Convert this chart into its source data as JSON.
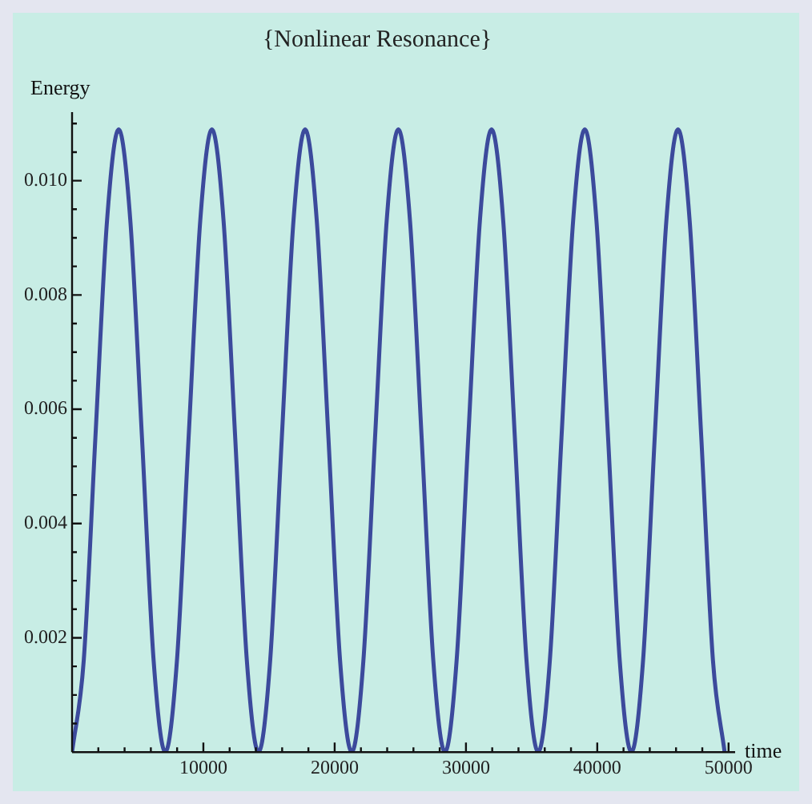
{
  "chart_data": {
    "type": "line",
    "title": "{Nonlinear Resonance}",
    "xlabel": "time",
    "ylabel": "Energy",
    "x": [
      0,
      887.5,
      1775,
      2662.5,
      3550,
      4437.5,
      5325,
      6212.5,
      7100,
      7987.5,
      8875,
      9762.5,
      10650,
      11537.5,
      12425,
      13312.5,
      14200,
      15087.5,
      15975,
      16862.5,
      17750,
      18637.5,
      19525,
      20412.5,
      21300,
      22187.5,
      23075,
      23962.5,
      24850,
      25737.5,
      26625,
      27512.5,
      28400,
      29287.5,
      30175,
      31062.5,
      31950,
      32837.5,
      33725,
      34612.5,
      35500,
      36387.5,
      37275,
      38162.5,
      39050,
      39937.5,
      40825,
      41712.5,
      42600,
      43487.5,
      44375,
      45262.5,
      46150,
      47037.5,
      47925,
      48812.5,
      49700
    ],
    "series": [
      {
        "color": "#3c4a9c",
        "values": [
          0,
          0.0016,
          0.0055,
          0.0093,
          0.0109,
          0.0093,
          0.0055,
          0.0016,
          0,
          0.0016,
          0.0055,
          0.0093,
          0.0109,
          0.0093,
          0.0055,
          0.0016,
          0,
          0.0016,
          0.0055,
          0.0093,
          0.0109,
          0.0093,
          0.0055,
          0.0016,
          0,
          0.0016,
          0.0055,
          0.0093,
          0.0109,
          0.0093,
          0.0055,
          0.0016,
          0,
          0.0016,
          0.0055,
          0.0093,
          0.0109,
          0.0093,
          0.0055,
          0.0016,
          0,
          0.0016,
          0.0055,
          0.0093,
          0.0109,
          0.0093,
          0.0055,
          0.0016,
          0,
          0.0016,
          0.0055,
          0.0093,
          0.0109,
          0.0093,
          0.0055,
          0.0016,
          0
        ]
      }
    ],
    "xlim": [
      0,
      50500
    ],
    "xticks": [
      10000,
      20000,
      30000,
      40000,
      50000
    ],
    "ylim": [
      0,
      0.0112
    ],
    "yticks": [
      0.002,
      0.004,
      0.006,
      0.008,
      {
        "value": 0.01,
        "label": "0.010"
      }
    ],
    "grid": false,
    "legend": false,
    "marker": "none",
    "line_style": "solid"
  }
}
